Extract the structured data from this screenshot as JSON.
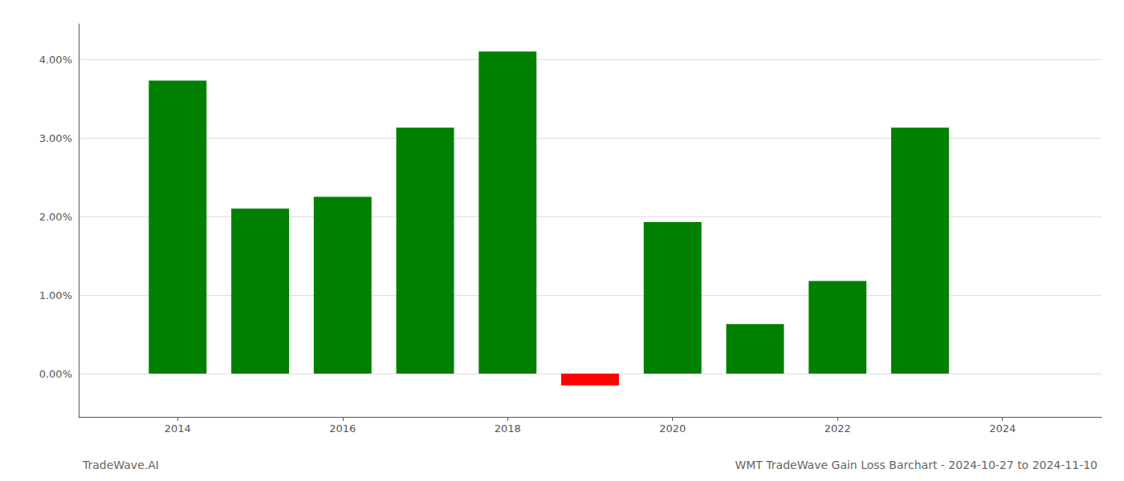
{
  "chart_data": {
    "type": "bar",
    "title": "WMT TradeWave Gain Loss Barchart - 2024-10-27 to 2024-11-10",
    "annotations": [
      "TradeWave.AI"
    ],
    "x": [
      2014,
      2015,
      2016,
      2017,
      2018,
      2019,
      2020,
      2021,
      2022,
      2023
    ],
    "values": [
      0.0373,
      0.021,
      0.0225,
      0.0313,
      0.041,
      -0.0015,
      0.0193,
      0.0063,
      0.0118,
      0.0313
    ],
    "colors": [
      "#008000",
      "#008000",
      "#008000",
      "#008000",
      "#008000",
      "#ff0000",
      "#008000",
      "#008000",
      "#008000",
      "#008000"
    ],
    "xlim": [
      2012.8,
      2025.2
    ],
    "xticks": [
      2014,
      2016,
      2018,
      2020,
      2022,
      2024
    ],
    "ylim": [
      -0.0055,
      0.0445
    ],
    "yticks": [
      {
        "value": 0.0,
        "label": "0.00%"
      },
      {
        "value": 0.01,
        "label": "1.00%"
      },
      {
        "value": 0.02,
        "label": "2.00%"
      },
      {
        "value": 0.03,
        "label": "3.00%"
      },
      {
        "value": 0.04,
        "label": "4.00%"
      }
    ],
    "grid": true
  }
}
